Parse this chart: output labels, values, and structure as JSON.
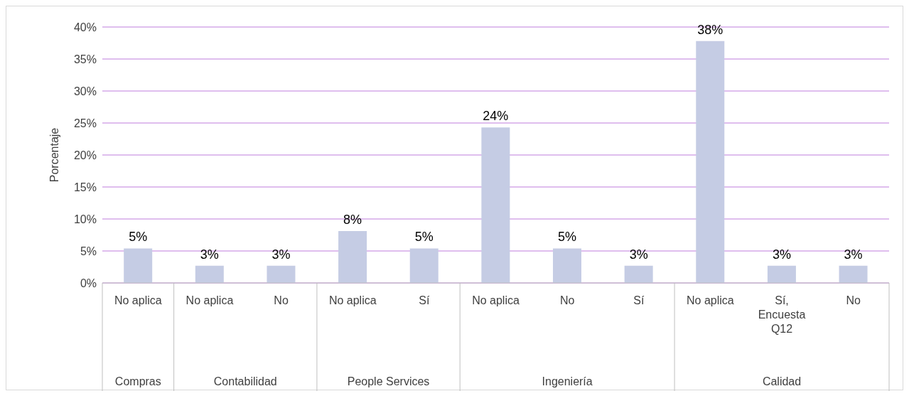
{
  "chart_data": {
    "type": "bar",
    "ylabel": "Porcentaje",
    "categories": [
      "No aplica",
      "No aplica",
      "No",
      "No aplica",
      "Sí",
      "No aplica",
      "No",
      "Sí",
      "No aplica",
      "Sí, Encuesta Q12",
      "No"
    ],
    "values": [
      5.4,
      2.7,
      2.7,
      8.1,
      5.4,
      24.3,
      5.4,
      2.7,
      37.8,
      2.7,
      2.7
    ],
    "value_labels": [
      "5%",
      "3%",
      "3%",
      "8%",
      "5%",
      "24%",
      "5%",
      "3%",
      "38%",
      "3%",
      "3%"
    ],
    "color": "#c5cce4",
    "ylim": [
      0,
      40
    ],
    "yticks": [
      {
        "value": 0,
        "label": "0%"
      },
      {
        "value": 5,
        "label": "5%"
      },
      {
        "value": 10,
        "label": "10%"
      },
      {
        "value": 15,
        "label": "15%"
      },
      {
        "value": 20,
        "label": "20%"
      },
      {
        "value": 25,
        "label": "25%"
      },
      {
        "value": 30,
        "label": "30%"
      },
      {
        "value": 35,
        "label": "35%"
      },
      {
        "value": 40,
        "label": "40%"
      }
    ],
    "grid": "y",
    "legend": false,
    "annotations": [
      "Compras",
      "Contabilidad",
      "People Services",
      "Ingeniería",
      "Calidad"
    ]
  }
}
